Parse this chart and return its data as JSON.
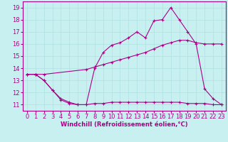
{
  "background_color": "#c8f0f0",
  "grid_color": "#b0e0e0",
  "line_color": "#aa0088",
  "xlim_min": -0.5,
  "xlim_max": 23.5,
  "ylim_min": 10.5,
  "ylim_max": 19.5,
  "xticks": [
    0,
    1,
    2,
    3,
    4,
    5,
    6,
    7,
    8,
    9,
    10,
    11,
    12,
    13,
    14,
    15,
    16,
    17,
    18,
    19,
    20,
    21,
    22,
    23
  ],
  "yticks": [
    11,
    12,
    13,
    14,
    15,
    16,
    17,
    18,
    19
  ],
  "xlabel": "Windchill (Refroidissement éolien,°C)",
  "fontsize_tick": 6,
  "fontsize_xlabel": 6,
  "marker": "+",
  "markersize": 3,
  "linewidth": 0.8,
  "line1_x": [
    0,
    1,
    2,
    3,
    4,
    5,
    6,
    7,
    8,
    9,
    10,
    11,
    12,
    13,
    14,
    15,
    16,
    17,
    18,
    19,
    20,
    21,
    22,
    23
  ],
  "line1_y": [
    13.5,
    13.5,
    13.0,
    12.2,
    11.4,
    11.1,
    11.0,
    11.0,
    11.1,
    11.1,
    11.2,
    11.2,
    11.2,
    11.2,
    11.2,
    11.2,
    11.2,
    11.2,
    11.2,
    11.1,
    11.1,
    11.1,
    11.0,
    11.0
  ],
  "line2_x": [
    0,
    1,
    2,
    7,
    8,
    9,
    10,
    11,
    12,
    13,
    14,
    15,
    16,
    17,
    18,
    19,
    20,
    21,
    22,
    23
  ],
  "line2_y": [
    13.5,
    13.5,
    13.5,
    13.9,
    14.1,
    14.3,
    14.5,
    14.7,
    14.9,
    15.1,
    15.3,
    15.6,
    15.9,
    16.1,
    16.3,
    16.3,
    16.1,
    16.0,
    16.0,
    16.0
  ],
  "line3_x": [
    0,
    1,
    2,
    3,
    4,
    5,
    6,
    7,
    8,
    9,
    10,
    11,
    12,
    13,
    14,
    15,
    16,
    17,
    18,
    19,
    20,
    21,
    22,
    23
  ],
  "line3_y": [
    13.5,
    13.5,
    13.0,
    12.2,
    11.5,
    11.2,
    11.0,
    11.0,
    14.0,
    15.3,
    15.9,
    16.1,
    16.5,
    17.0,
    16.5,
    17.9,
    18.0,
    19.0,
    18.0,
    17.0,
    16.0,
    12.3,
    11.5,
    11.0
  ]
}
